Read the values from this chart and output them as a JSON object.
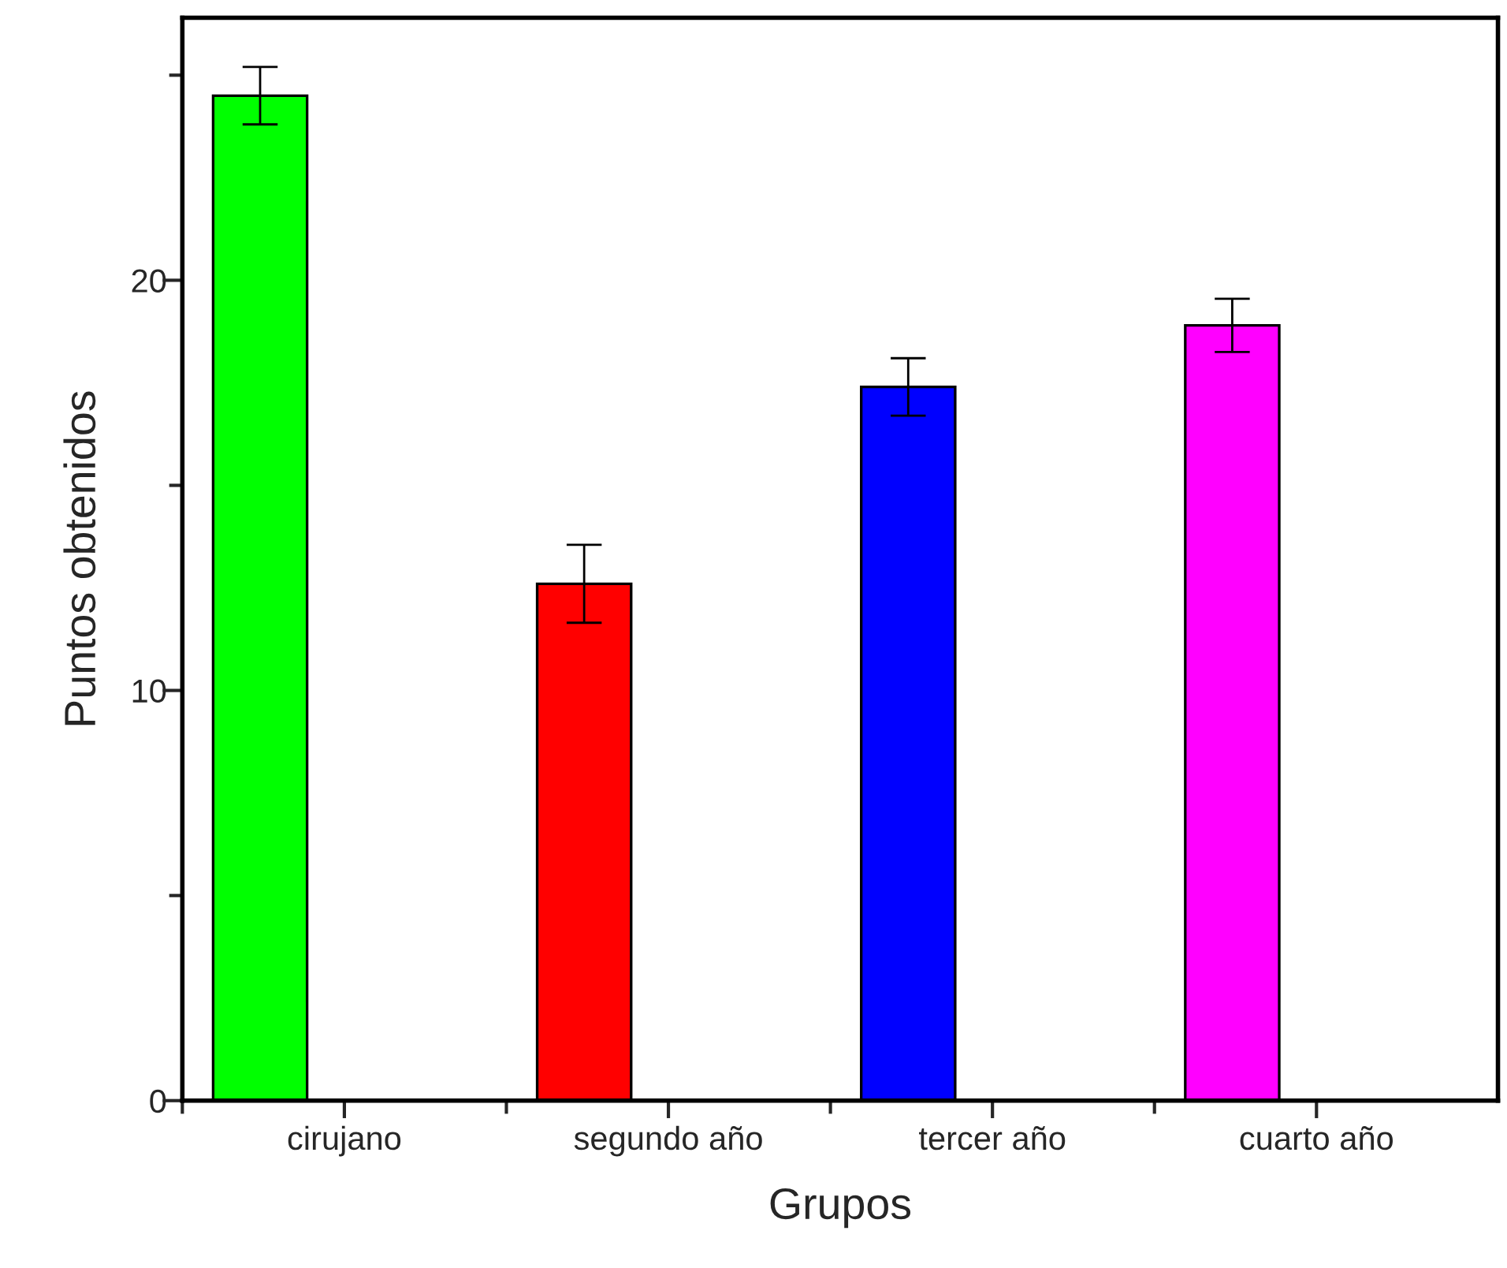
{
  "chart_data": {
    "type": "bar",
    "xlabel": "Grupos",
    "ylabel": "Puntos obtenidos",
    "categories": [
      "cirujano",
      "segundo año",
      "tercer año",
      "cuarto año"
    ],
    "values": [
      24.5,
      12.6,
      17.4,
      18.9
    ],
    "errors": [
      0.7,
      0.95,
      0.7,
      0.65
    ],
    "colors": [
      "#00ff00",
      "#ff0000",
      "#0000ff",
      "#ff00ff"
    ],
    "ylim": [
      0,
      26.4
    ],
    "yticks": [
      0,
      {
        "value": 5,
        "label": null
      },
      10,
      {
        "value": 15,
        "label": null
      },
      20,
      {
        "value": 25,
        "label": null
      }
    ],
    "grid": false,
    "legend": false
  }
}
